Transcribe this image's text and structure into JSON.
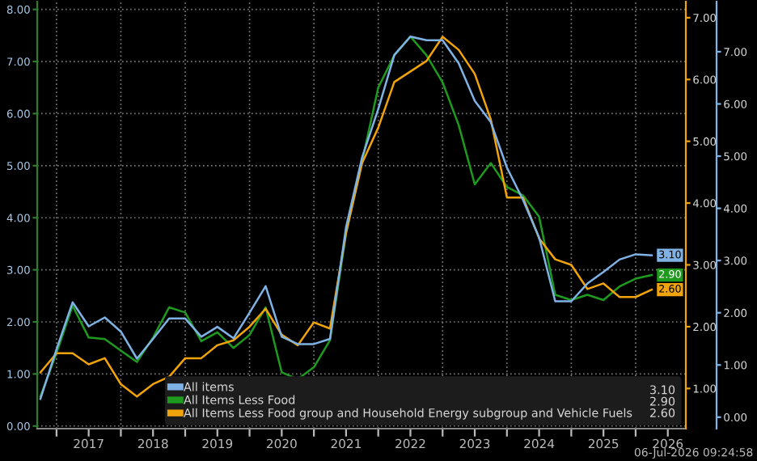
{
  "chart_data": {
    "type": "line",
    "x": [
      2016.75,
      2017.0,
      2017.25,
      2017.5,
      2017.75,
      2018.0,
      2018.25,
      2018.5,
      2018.75,
      2019.0,
      2019.25,
      2019.5,
      2019.75,
      2020.0,
      2020.25,
      2020.5,
      2020.75,
      2021.0,
      2021.25,
      2021.5,
      2021.75,
      2022.0,
      2022.25,
      2022.5,
      2022.75,
      2023.0,
      2023.25,
      2023.5,
      2023.75,
      2024.0,
      2024.25,
      2024.5,
      2024.75,
      2025.0,
      2025.25,
      2025.5,
      2025.75,
      2026.0,
      2026.25
    ],
    "series": [
      {
        "name": "All items",
        "color": "#7fb2e5",
        "axis": "y3",
        "values": [
          0.35,
          1.3,
          2.2,
          1.74,
          1.91,
          1.64,
          1.12,
          1.5,
          1.89,
          1.89,
          1.54,
          1.73,
          1.51,
          2.0,
          2.51,
          1.54,
          1.4,
          1.4,
          1.5,
          3.64,
          4.98,
          5.9,
          6.94,
          7.29,
          7.22,
          7.22,
          6.78,
          6.06,
          5.65,
          4.78,
          4.16,
          3.44,
          2.22,
          2.22,
          2.56,
          2.78,
          3.02,
          3.12,
          3.1
        ],
        "value_labels": [
          null,
          null,
          null,
          null,
          null,
          null,
          null,
          null,
          null,
          null,
          null,
          null,
          null,
          null,
          null,
          null,
          null,
          null,
          null,
          null,
          null,
          null,
          null,
          null,
          null,
          null,
          null,
          null,
          null,
          null,
          null,
          null,
          null,
          null,
          null,
          null,
          null,
          null,
          "3.10"
        ]
      },
      {
        "name": "All Items Less Food",
        "color": "#1e9a1e",
        "axis": "y",
        "values": [
          0.57,
          1.4,
          2.31,
          1.7,
          1.67,
          1.45,
          1.23,
          1.7,
          2.28,
          2.18,
          1.63,
          1.8,
          1.5,
          1.75,
          2.28,
          1.03,
          0.9,
          1.13,
          1.65,
          3.7,
          5.09,
          6.5,
          7.12,
          7.48,
          7.12,
          6.6,
          5.78,
          4.64,
          5.05,
          4.59,
          4.43,
          4.02,
          2.52,
          2.42,
          2.52,
          2.42,
          2.68,
          2.83,
          2.9
        ],
        "value_labels": [
          null,
          null,
          null,
          null,
          null,
          null,
          null,
          null,
          null,
          null,
          null,
          null,
          null,
          null,
          null,
          null,
          null,
          null,
          null,
          null,
          null,
          null,
          null,
          null,
          null,
          null,
          null,
          null,
          null,
          null,
          null,
          null,
          null,
          null,
          null,
          null,
          null,
          null,
          "2.90"
        ]
      },
      {
        "name": "All Items Less Food group and Household Energy subgroup and Vehicle Fuels",
        "color": "#f0a30a",
        "axis": "y2",
        "values": [
          1.26,
          1.57,
          1.57,
          1.39,
          1.49,
          1.07,
          0.87,
          1.07,
          1.19,
          1.49,
          1.49,
          1.7,
          1.78,
          2.0,
          2.29,
          1.87,
          1.7,
          2.07,
          1.97,
          3.52,
          4.65,
          5.22,
          5.96,
          6.13,
          6.3,
          6.69,
          6.48,
          6.09,
          5.35,
          4.09,
          4.09,
          3.43,
          3.09,
          3.0,
          2.61,
          2.7,
          2.48,
          2.48,
          2.6
        ],
        "value_labels": [
          null,
          null,
          null,
          null,
          null,
          null,
          null,
          null,
          null,
          null,
          null,
          null,
          null,
          null,
          null,
          null,
          null,
          null,
          null,
          null,
          null,
          null,
          null,
          null,
          null,
          null,
          null,
          null,
          null,
          null,
          null,
          null,
          null,
          null,
          null,
          null,
          null,
          null,
          "2.60"
        ]
      }
    ],
    "xlim": [
      2016.7,
      2026.78
    ],
    "xticks": [
      {
        "value": 2017,
        "label": null
      },
      {
        "value": 2017.5,
        "label": "2017"
      },
      {
        "value": 2018,
        "label": null
      },
      {
        "value": 2018.5,
        "label": "2018"
      },
      {
        "value": 2019,
        "label": null
      },
      {
        "value": 2019.5,
        "label": "2019"
      },
      {
        "value": 2020,
        "label": null
      },
      {
        "value": 2020.5,
        "label": "2020"
      },
      {
        "value": 2021,
        "label": null
      },
      {
        "value": 2021.5,
        "label": "2021"
      },
      {
        "value": 2022,
        "label": null
      },
      {
        "value": 2022.5,
        "label": "2022"
      },
      {
        "value": 2023,
        "label": null
      },
      {
        "value": 2023.5,
        "label": "2023"
      },
      {
        "value": 2024,
        "label": null
      },
      {
        "value": 2024.5,
        "label": "2024"
      },
      {
        "value": 2025,
        "label": null
      },
      {
        "value": 2025.5,
        "label": "2025"
      },
      {
        "value": 2026,
        "label": null
      },
      {
        "value": 2026.5,
        "label": "2026"
      }
    ],
    "ylim": [
      -0.05,
      8.15
    ],
    "yticks": [
      {
        "value": 0,
        "label": "0.00"
      },
      {
        "value": 1,
        "label": "1.00"
      },
      {
        "value": 2,
        "label": "2.00"
      },
      {
        "value": 3,
        "label": "3.00"
      },
      {
        "value": 4,
        "label": "4.00"
      },
      {
        "value": 5,
        "label": "5.00"
      },
      {
        "value": 6,
        "label": "6.00"
      },
      {
        "value": 7,
        "label": "7.00"
      },
      {
        "value": 8,
        "label": "8.00"
      }
    ],
    "y2lim": [
      0.35,
      7.26
    ],
    "y2ticks": [
      {
        "value": 1,
        "label": "1.00"
      },
      {
        "value": 2,
        "label": "2.00"
      },
      {
        "value": 3,
        "label": "3.00"
      },
      {
        "value": 4,
        "label": "4.00"
      },
      {
        "value": 5,
        "label": "5.00"
      },
      {
        "value": 6,
        "label": "6.00"
      },
      {
        "value": 7,
        "label": "7.00"
      }
    ],
    "y3lim": [
      -0.22,
      7.96
    ],
    "y3ticks": [
      {
        "value": 0,
        "label": "0.00"
      },
      {
        "value": 1,
        "label": "1.00"
      },
      {
        "value": 2,
        "label": "2.00"
      },
      {
        "value": 3,
        "label": "3.00"
      },
      {
        "value": 4,
        "label": "4.00"
      },
      {
        "value": 5,
        "label": "5.00"
      },
      {
        "value": 6,
        "label": "6.00"
      },
      {
        "value": 7,
        "label": "7.00"
      }
    ],
    "grid": true,
    "legend": "bottom right",
    "marker": "none",
    "line_style": "solid",
    "annotations": [
      "06-Jul-2026 09:24:58"
    ]
  }
}
